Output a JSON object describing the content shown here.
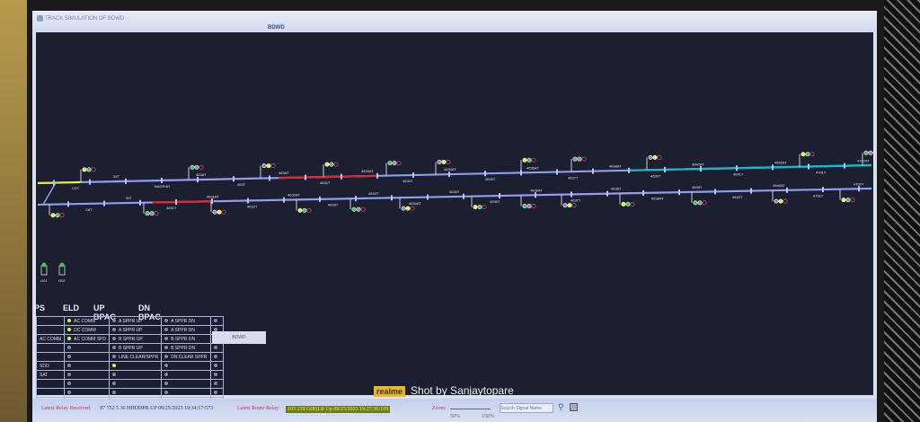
{
  "window": {
    "title": "TRACK SIMULATION OF BDWD",
    "station": "BDWD"
  },
  "colors": {
    "track": "#8f9cf0",
    "occupied": "#e02828",
    "route": "#18b8c8",
    "selected": "#e6f03a",
    "canvas": "#1c1f30"
  },
  "tracks": {
    "upper_labels": [
      "CDT",
      "39T",
      "NAGPUR",
      "463AT",
      "463T",
      "463AT",
      "4632T",
      "4633AT",
      "4634T",
      "4634AT",
      "4635T",
      "4636AT",
      "4637T",
      "4638AT",
      "4639T",
      "4640AT",
      "4641T",
      "4642AT",
      "4701T",
      "4702AT"
    ],
    "lower_labels": [
      "C8T",
      "39T",
      "4631T",
      "4631AT",
      "4632T",
      "4632AT",
      "4633T",
      "4634T",
      "4634AT",
      "4635T",
      "4636T",
      "4636AT",
      "4637T",
      "4638T",
      "4638AT",
      "4639T",
      "4640T",
      "4640AT",
      "4701T",
      "4702T"
    ],
    "small_signals": [
      "G01",
      "G02"
    ]
  },
  "ps_table": {
    "headers": [
      "PS",
      "ELD",
      "UP BPAC",
      "DN BPAC"
    ],
    "rows": [
      [
        "",
        "AC COMM",
        "A SPPR UP",
        "A SPPR DN",
        ""
      ],
      [
        "",
        "DC COMM",
        "A SPPR UP",
        "A SPPR DN",
        ""
      ],
      [
        "AC COMM",
        "AC COMM SPD",
        "B SPPR UP",
        "B SPPR DN",
        ""
      ],
      [
        "",
        "",
        "B SPPR UP",
        "B SPPR DN",
        ""
      ],
      [
        "",
        "",
        "LINE CLEAR/SPPR",
        "DN CLEAR SPPR",
        ""
      ],
      [
        "SDD",
        "",
        "",
        "",
        ""
      ],
      [
        "SAT",
        "",
        "",
        "",
        ""
      ],
      [
        "",
        "",
        "",
        "",
        ""
      ],
      [
        "",
        "",
        "",
        "",
        ""
      ],
      [
        "",
        "",
        "",
        "",
        ""
      ]
    ],
    "active": [
      [
        0,
        1
      ],
      [
        1,
        1
      ],
      [
        2,
        1
      ],
      [
        5,
        2
      ]
    ]
  },
  "bdwd_button": "BDWD",
  "status": {
    "relay_label": "Latest Relay Received:",
    "relay_value": "97 752 5 36 HHDDPB UP  09/25/2023 19:34:17:573",
    "route_label": "Latest Route Relay:",
    "route_value": "103 219 G(R)LR Up 09/25/2023 19:27:36:109",
    "zoom_label": "Zoom:",
    "zoom_min": "50%",
    "zoom_max": "150%",
    "search_placeholder": "Search Signal Name"
  },
  "watermark": {
    "brand": "realme",
    "text": "Shot by Sanjaytopare"
  }
}
